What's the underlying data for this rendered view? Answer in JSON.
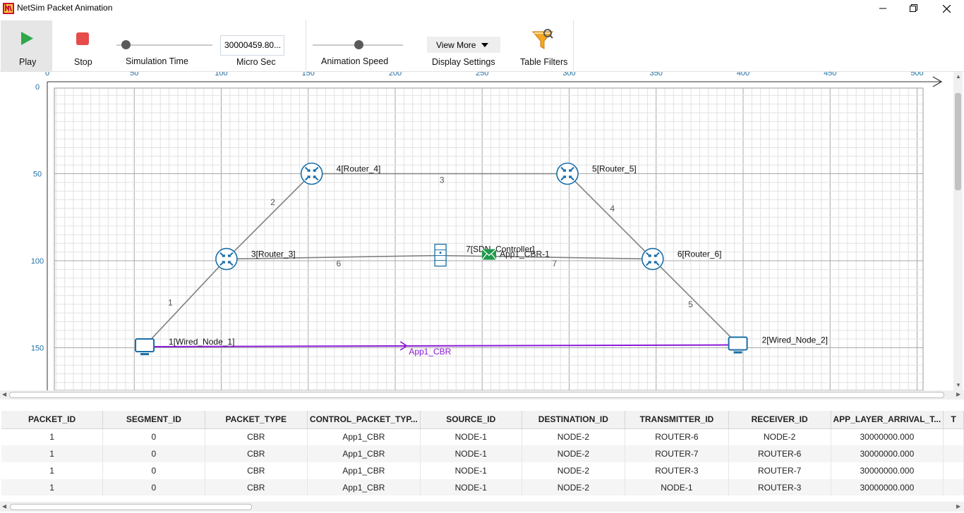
{
  "window": {
    "title": "NetSim Packet Animation"
  },
  "toolbar": {
    "play_label": "Play",
    "stop_label": "Stop",
    "simulation_time_label": "Simulation Time",
    "simulation_time_value": "30000459.80...",
    "time_unit_label": "Micro Sec",
    "animation_speed_label": "Animation Speed",
    "view_more_label": "View More",
    "display_settings_label": "Display Settings",
    "table_filters_label": "Table Filters"
  },
  "canvas": {
    "x_ticks": [
      "0",
      "50",
      "100",
      "150",
      "200",
      "250",
      "300",
      "350",
      "400",
      "450",
      "500"
    ],
    "y_ticks": [
      "0",
      "50",
      "100",
      "150"
    ],
    "nodes": [
      {
        "id": "router-4",
        "label": "4[Router_4]",
        "type": "router"
      },
      {
        "id": "router-5",
        "label": "5[Router_5]",
        "type": "router"
      },
      {
        "id": "router-3",
        "label": "3[Router_3]",
        "type": "router"
      },
      {
        "id": "router-6",
        "label": "6[Router_6]",
        "type": "router"
      },
      {
        "id": "sdn-controller",
        "label": "7[SDN_Controller]",
        "type": "server"
      },
      {
        "id": "wired-node-1",
        "label": "1[Wired_Node_1]",
        "type": "computer"
      },
      {
        "id": "wired-node-2",
        "label": "2[Wired_Node_2]",
        "type": "computer"
      }
    ],
    "links": [
      {
        "id": "1",
        "label": "1"
      },
      {
        "id": "2",
        "label": "2"
      },
      {
        "id": "3",
        "label": "3"
      },
      {
        "id": "4",
        "label": "4"
      },
      {
        "id": "5",
        "label": "5"
      },
      {
        "id": "6",
        "label": "6"
      },
      {
        "id": "7",
        "label": "7"
      }
    ],
    "packet_label": "App1_CBR-1",
    "flow_label": "App1_CBR",
    "colors": {
      "grid_major": "#a8a8a8",
      "grid_minor": "#e2e2e2",
      "axis_ticks": "#1f6fa3",
      "router_icon": "#1a6ea8",
      "link": "#808080",
      "flow": "#8a19d6",
      "packet": "#1e9a4c"
    }
  },
  "table": {
    "columns": [
      "PACKET_ID",
      "SEGMENT_ID",
      "PACKET_TYPE",
      "CONTROL_PACKET_TYP...",
      "SOURCE_ID",
      "DESTINATION_ID",
      "TRANSMITTER_ID",
      "RECEIVER_ID",
      "APP_LAYER_ARRIVAL_T...",
      "T"
    ],
    "rows": [
      [
        "1",
        "0",
        "CBR",
        "App1_CBR",
        "NODE-1",
        "NODE-2",
        "ROUTER-6",
        "NODE-2",
        "30000000.000",
        ""
      ],
      [
        "1",
        "0",
        "CBR",
        "App1_CBR",
        "NODE-1",
        "NODE-2",
        "ROUTER-7",
        "ROUTER-6",
        "30000000.000",
        ""
      ],
      [
        "1",
        "0",
        "CBR",
        "App1_CBR",
        "NODE-1",
        "NODE-2",
        "ROUTER-3",
        "ROUTER-7",
        "30000000.000",
        ""
      ],
      [
        "1",
        "0",
        "CBR",
        "App1_CBR",
        "NODE-1",
        "NODE-2",
        "NODE-1",
        "ROUTER-3",
        "30000000.000",
        ""
      ]
    ]
  }
}
